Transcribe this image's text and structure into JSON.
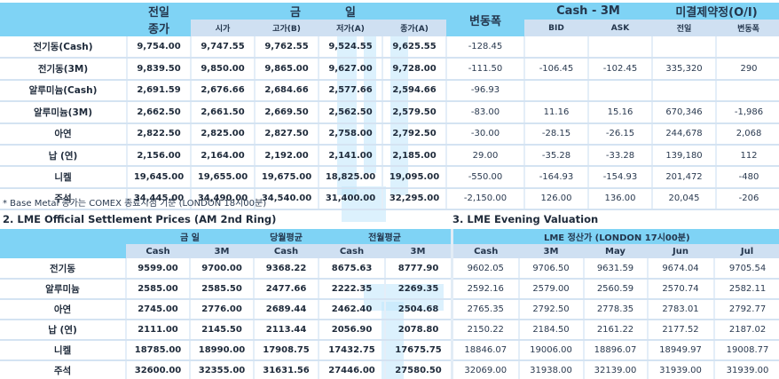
{
  "table1": {
    "headers": {
      "prev_close_top": "전일",
      "prev_close_bottom": "종가",
      "today_left": "금",
      "today_right": "일",
      "open": "시가",
      "high": "고가(B)",
      "low": "저가(A)",
      "close": "종가(A)",
      "change": "변동폭",
      "cash3m": "Cash  -  3M",
      "bid": "BID",
      "ask": "ASK",
      "oi": "미결제약정(O/I)",
      "oi_prev": "전일",
      "oi_change": "변동폭"
    },
    "rows": [
      {
        "name": "전기동(Cash)",
        "prev_close": "9,754.00",
        "open": "9,747.55",
        "high": "9,762.55",
        "low": "9,524.55",
        "close": "9,625.55",
        "change": "-128.45",
        "bid": "",
        "ask": "",
        "oi_prev": "",
        "oi_change": ""
      },
      {
        "name": "전기동(3M)",
        "prev_close": "9,839.50",
        "open": "9,850.00",
        "high": "9,865.00",
        "low": "9,627.00",
        "close": "9,728.00",
        "change": "-111.50",
        "bid": "-106.45",
        "ask": "-102.45",
        "oi_prev": "335,320",
        "oi_change": "290"
      },
      {
        "name": "알루미늄(Cash)",
        "prev_close": "2,691.59",
        "open": "2,676.66",
        "high": "2,684.66",
        "low": "2,577.66",
        "close": "2,594.66",
        "change": "-96.93",
        "bid": "",
        "ask": "",
        "oi_prev": "",
        "oi_change": ""
      },
      {
        "name": "알루미늄(3M)",
        "prev_close": "2,662.50",
        "open": "2,661.50",
        "high": "2,669.50",
        "low": "2,562.50",
        "close": "2,579.50",
        "change": "-83.00",
        "bid": "11.16",
        "ask": "15.16",
        "oi_prev": "670,346",
        "oi_change": "-1,986"
      },
      {
        "name": "아연",
        "prev_close": "2,822.50",
        "open": "2,825.00",
        "high": "2,827.50",
        "low": "2,758.00",
        "close": "2,792.50",
        "change": "-30.00",
        "bid": "-28.15",
        "ask": "-26.15",
        "oi_prev": "244,678",
        "oi_change": "2,068"
      },
      {
        "name": "납 (연)",
        "prev_close": "2,156.00",
        "open": "2,164.00",
        "high": "2,192.00",
        "low": "2,141.00",
        "close": "2,185.00",
        "change": "29.00",
        "bid": "-35.28",
        "ask": "-33.28",
        "oi_prev": "139,180",
        "oi_change": "112"
      },
      {
        "name": "니켈",
        "prev_close": "19,645.00",
        "open": "19,655.00",
        "high": "19,675.00",
        "low": "18,825.00",
        "close": "19,095.00",
        "change": "-550.00",
        "bid": "-164.93",
        "ask": "-154.93",
        "oi_prev": "201,472",
        "oi_change": "-480"
      },
      {
        "name": "주석",
        "prev_close": "34,445.00",
        "open": "34,490.00",
        "high": "34,540.00",
        "low": "31,400.00",
        "close": "32,295.00",
        "change": "-2,150.00",
        "bid": "126.00",
        "ask": "136.00",
        "oi_prev": "20,045",
        "oi_change": "-206"
      }
    ],
    "note": "* Base Metal 종가는 COMEX 종료시점 기준 (LONDON 18시00분)"
  },
  "section2": {
    "title": "2. LME Official Settlement Prices (AM 2nd Ring)",
    "headers": {
      "today": "금   일",
      "this_month_avg": "당월평균",
      "last_month_avg": "전월평균",
      "cash": "Cash",
      "3m": "3M"
    },
    "rows": [
      {
        "name": "전기동",
        "today_cash": "9599.00",
        "today_3m": "9700.00",
        "this_cash": "9368.22",
        "last_cash": "8675.63",
        "last_3m": "8777.90"
      },
      {
        "name": "알루미늄",
        "today_cash": "2585.00",
        "today_3m": "2585.50",
        "this_cash": "2477.66",
        "last_cash": "2222.35",
        "last_3m": "2269.35"
      },
      {
        "name": "아연",
        "today_cash": "2745.00",
        "today_3m": "2776.00",
        "this_cash": "2689.44",
        "last_cash": "2462.40",
        "last_3m": "2504.68"
      },
      {
        "name": "납 (연)",
        "today_cash": "2111.00",
        "today_3m": "2145.50",
        "this_cash": "2113.44",
        "last_cash": "2056.90",
        "last_3m": "2078.80"
      },
      {
        "name": "니켈",
        "today_cash": "18785.00",
        "today_3m": "18990.00",
        "this_cash": "17908.75",
        "last_cash": "17432.75",
        "last_3m": "17675.75"
      },
      {
        "name": "주석",
        "today_cash": "32600.00",
        "today_3m": "32355.00",
        "this_cash": "31631.56",
        "last_cash": "27446.00",
        "last_3m": "27580.50"
      }
    ]
  },
  "section3": {
    "title": "3. LME Evening Valuation",
    "headers": {
      "main": "LME 정산가 (LONDON 17시00분)",
      "cash": "Cash",
      "3m": "3M",
      "may": "May",
      "jun": "Jun",
      "jul": "Jul"
    },
    "rows": [
      {
        "cash": "9602.05",
        "m3": "9706.50",
        "may": "9631.59",
        "jun": "9674.04",
        "jul": "9705.54"
      },
      {
        "cash": "2592.16",
        "m3": "2579.00",
        "may": "2560.59",
        "jun": "2570.74",
        "jul": "2582.11"
      },
      {
        "cash": "2765.35",
        "m3": "2792.50",
        "may": "2778.35",
        "jun": "2783.01",
        "jul": "2792.77"
      },
      {
        "cash": "2150.22",
        "m3": "2184.50",
        "may": "2161.22",
        "jun": "2177.52",
        "jul": "2187.02"
      },
      {
        "cash": "18846.07",
        "m3": "19006.00",
        "may": "18896.07",
        "jun": "18949.97",
        "jul": "19008.77"
      },
      {
        "cash": "32069.00",
        "m3": "31938.00",
        "may": "32139.00",
        "jun": "31939.00",
        "jul": "31939.00"
      }
    ]
  },
  "colors": {
    "header_top": "#7fd3f5",
    "header_sub": "#cfe0f2",
    "row_border": "#d4e3f2",
    "watermark": "#bfe6fb"
  }
}
